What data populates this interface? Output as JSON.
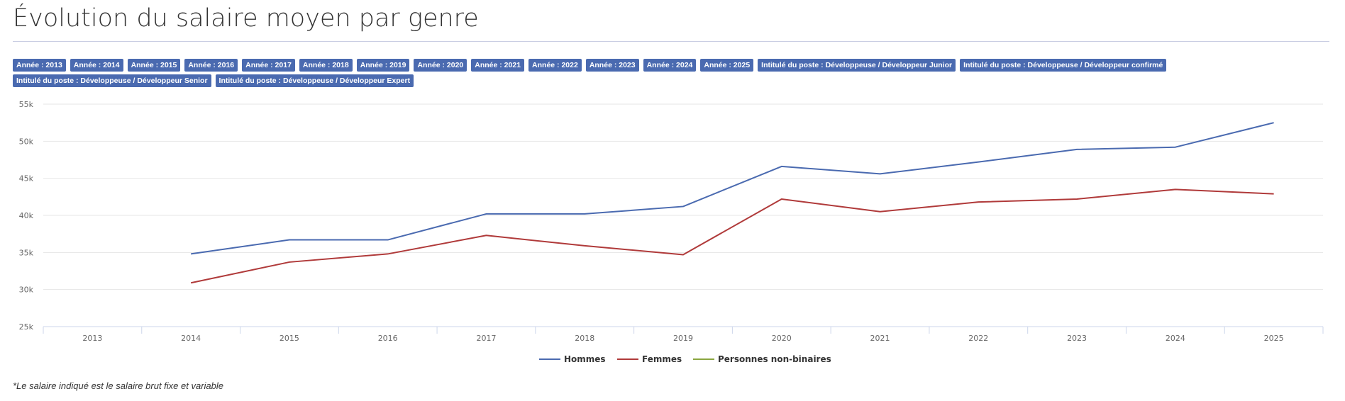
{
  "title": "Évolution du salaire moyen par genre",
  "filters": [
    "Année : 2013",
    "Année : 2014",
    "Année : 2015",
    "Année : 2016",
    "Année : 2017",
    "Année : 2018",
    "Année : 2019",
    "Année : 2020",
    "Année : 2021",
    "Année : 2022",
    "Année : 2023",
    "Année : 2024",
    "Année : 2025",
    "Intitulé du poste : Développeuse / Développeur Junior",
    "Intitulé du poste : Développeuse / Développeur confirmé",
    "Intitulé du poste : Développeuse / Développeur Senior",
    "Intitulé du poste : Développeuse / Développeur Expert"
  ],
  "footnote": "*Le salaire indiqué est le salaire brut fixe et variable",
  "chart_data": {
    "type": "line",
    "categories": [
      "2013",
      "2014",
      "2015",
      "2016",
      "2017",
      "2018",
      "2019",
      "2020",
      "2021",
      "2022",
      "2023",
      "2024",
      "2025"
    ],
    "ylim": [
      25000,
      55000
    ],
    "yticks": [
      25000,
      30000,
      35000,
      40000,
      45000,
      50000,
      55000
    ],
    "ytick_labels": [
      "25k",
      "30k",
      "35k",
      "40k",
      "45k",
      "50k",
      "55k"
    ],
    "grid": true,
    "legend": "bottom-center",
    "series": [
      {
        "name": "Hommes",
        "color": "#4a6ab0",
        "values": [
          null,
          34800,
          36700,
          36700,
          40200,
          40200,
          41200,
          46600,
          45600,
          47200,
          48900,
          49200,
          52500
        ]
      },
      {
        "name": "Femmes",
        "color": "#b03a3a",
        "values": [
          null,
          30900,
          33700,
          34800,
          37300,
          35900,
          34700,
          42200,
          40500,
          41800,
          42200,
          43500,
          42900
        ]
      },
      {
        "name": "Personnes non-binaires",
        "color": "#8aa640",
        "values": [
          null,
          null,
          null,
          null,
          null,
          null,
          null,
          null,
          null,
          null,
          null,
          null,
          null
        ]
      }
    ]
  }
}
